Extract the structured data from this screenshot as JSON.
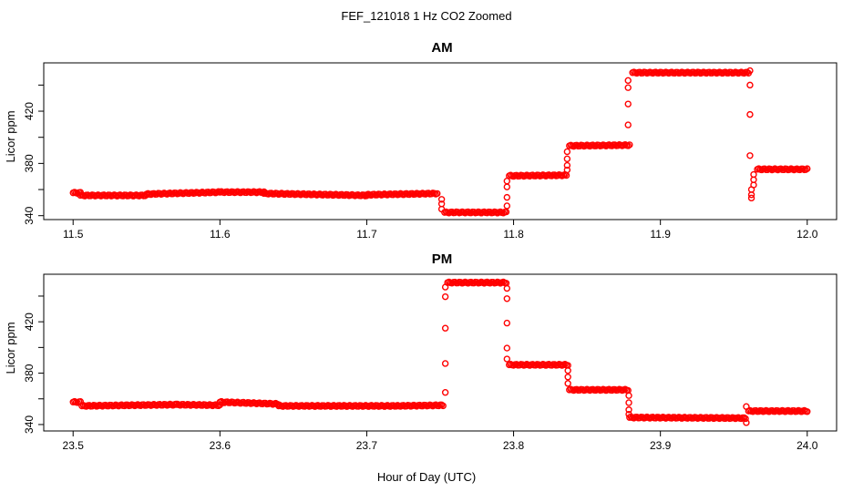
{
  "figure": {
    "title": "FEF_121018  1 Hz CO2 Zoomed",
    "xlabel": "Hour of Day (UTC)"
  },
  "chart_data": [
    {
      "type": "scatter",
      "title": "AM",
      "xlabel": "",
      "ylabel": "Licor ppm",
      "xlim": [
        11.48,
        12.02
      ],
      "ylim": [
        337,
        457
      ],
      "xticks": [
        "11.5",
        "11.6",
        "11.7",
        "11.8",
        "11.9",
        "12.0"
      ],
      "yticks": [
        "340",
        "360",
        "380",
        "400",
        "420",
        "440"
      ],
      "ytick_labels": [
        "340",
        "380",
        "420"
      ],
      "marker": "open-circle",
      "color": "#ff0000",
      "segments": [
        {
          "x": [
            11.5,
            11.505
          ],
          "y": [
            357.5,
            357.5
          ]
        },
        {
          "x": [
            11.505,
            11.55
          ],
          "y": [
            355.5,
            355.5
          ]
        },
        {
          "x": [
            11.55,
            11.6
          ],
          "y": [
            356.5,
            358.0
          ]
        },
        {
          "x": [
            11.6,
            11.63
          ],
          "y": [
            358.0,
            358.0
          ]
        },
        {
          "x": [
            11.63,
            11.7
          ],
          "y": [
            357.0,
            355.5
          ]
        },
        {
          "x": [
            11.7,
            11.748
          ],
          "y": [
            356.0,
            357.0
          ]
        },
        {
          "x": [
            11.753,
            11.795
          ],
          "y": [
            342.5,
            342.5
          ]
        },
        {
          "x": [
            11.797,
            11.836
          ],
          "y": [
            370.5,
            371.0
          ]
        },
        {
          "x": [
            11.838,
            11.879
          ],
          "y": [
            393.5,
            394.0
          ]
        },
        {
          "x": [
            11.881,
            11.96
          ],
          "y": [
            449.5,
            449.5
          ]
        },
        {
          "x": [
            11.966,
            12.0
          ],
          "y": [
            375.5,
            375.5
          ]
        }
      ],
      "transitions": [
        {
          "x": 11.751,
          "y": [
            352.5,
            349.0,
            345.0
          ]
        },
        {
          "x": 11.7955,
          "y": [
            347.5,
            354.0,
            362.0,
            366.5
          ]
        },
        {
          "x": 11.8365,
          "y": [
            375.0,
            378.5,
            383.5,
            389.0
          ]
        },
        {
          "x": 11.878,
          "y": [
            409.5,
            425.5,
            438.0,
            443.5
          ]
        },
        {
          "x": 11.961,
          "y": [
            451.0,
            440.0,
            417.5,
            386.0
          ]
        },
        {
          "x": 11.962,
          "y": [
            353.5,
            356.0,
            360.0
          ]
        },
        {
          "x": 11.9635,
          "y": [
            363.5,
            367.5,
            371.5
          ]
        }
      ]
    },
    {
      "type": "scatter",
      "title": "PM",
      "xlabel": "Hour of Day (UTC)",
      "ylabel": "Licor ppm",
      "xlim": [
        23.48,
        24.02
      ],
      "ylim": [
        335,
        457
      ],
      "xticks": [
        "23.5",
        "23.6",
        "23.7",
        "23.8",
        "23.9",
        "24.0"
      ],
      "yticks": [
        "340",
        "360",
        "380",
        "400",
        "420",
        "440"
      ],
      "ytick_labels": [
        "340",
        "380",
        "420"
      ],
      "marker": "open-circle",
      "color": "#ff0000",
      "segments": [
        {
          "x": [
            23.5,
            23.505
          ],
          "y": [
            357.5,
            357.5
          ]
        },
        {
          "x": [
            23.506,
            23.57
          ],
          "y": [
            354.5,
            355.5
          ]
        },
        {
          "x": [
            23.57,
            23.6
          ],
          "y": [
            355.5,
            355.0
          ]
        },
        {
          "x": [
            23.6,
            23.64
          ],
          "y": [
            357.5,
            356.0
          ]
        },
        {
          "x": [
            23.64,
            23.72
          ],
          "y": [
            354.5,
            354.5
          ]
        },
        {
          "x": [
            23.72,
            23.752
          ],
          "y": [
            354.5,
            355.0
          ]
        },
        {
          "x": [
            23.755,
            23.795
          ],
          "y": [
            450.5,
            450.5
          ]
        },
        {
          "x": [
            23.797,
            23.837
          ],
          "y": [
            386.5,
            386.5
          ]
        },
        {
          "x": [
            23.838,
            23.878
          ],
          "y": [
            367.0,
            367.0
          ]
        },
        {
          "x": [
            23.879,
            23.958
          ],
          "y": [
            345.5,
            345.0
          ]
        },
        {
          "x": [
            23.96,
            24.0
          ],
          "y": [
            350.5,
            350.5
          ]
        }
      ],
      "transitions": [
        {
          "x": 23.7535,
          "y": [
            365.0,
            387.5,
            415.0,
            439.5,
            447.0
          ]
        },
        {
          "x": 23.7955,
          "y": [
            446.0,
            438.0,
            419.0,
            399.5,
            391.0
          ]
        },
        {
          "x": 23.837,
          "y": [
            382.0,
            377.0,
            372.0
          ]
        },
        {
          "x": 23.8785,
          "y": [
            362.5,
            357.0,
            351.5,
            348.0
          ]
        },
        {
          "x": 23.9585,
          "y": [
            341.5,
            354.0
          ]
        }
      ]
    }
  ]
}
